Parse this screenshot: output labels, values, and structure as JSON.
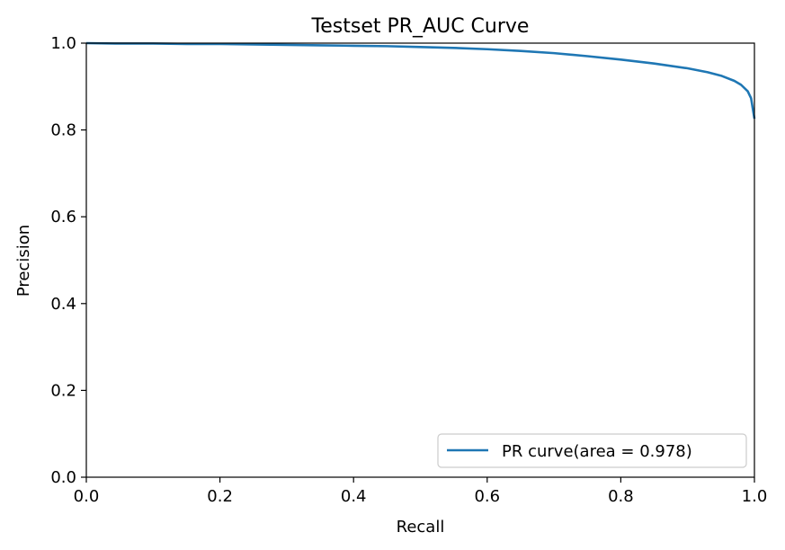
{
  "chart_data": {
    "type": "line",
    "title": "Testset PR_AUC Curve",
    "xlabel": "Recall",
    "ylabel": "Precision",
    "xlim": [
      0.0,
      1.0
    ],
    "ylim": [
      0.0,
      1.0
    ],
    "x_ticks": [
      "0.0",
      "0.2",
      "0.4",
      "0.6",
      "0.8",
      "1.0"
    ],
    "y_ticks": [
      "0.0",
      "0.2",
      "0.4",
      "0.6",
      "0.8",
      "1.0"
    ],
    "grid": false,
    "legend_position": "lower-right",
    "series": [
      {
        "name": "PR curve(area = 0.978)",
        "color": "#1f77b4",
        "x": [
          0.0,
          0.05,
          0.1,
          0.15,
          0.2,
          0.25,
          0.3,
          0.35,
          0.4,
          0.45,
          0.5,
          0.55,
          0.6,
          0.65,
          0.7,
          0.75,
          0.8,
          0.85,
          0.9,
          0.93,
          0.95,
          0.97,
          0.98,
          0.99,
          0.995,
          1.0
        ],
        "y": [
          1.0,
          0.999,
          0.999,
          0.998,
          0.998,
          0.997,
          0.996,
          0.995,
          0.994,
          0.993,
          0.991,
          0.989,
          0.986,
          0.982,
          0.977,
          0.97,
          0.962,
          0.953,
          0.942,
          0.933,
          0.925,
          0.913,
          0.904,
          0.889,
          0.873,
          0.826
        ]
      }
    ]
  }
}
